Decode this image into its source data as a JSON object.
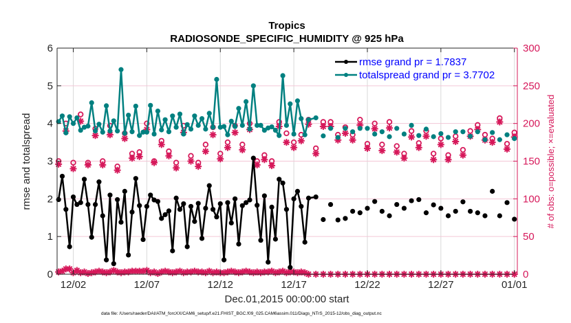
{
  "chart_data": {
    "type": "line",
    "title": "Tropics",
    "subtitle": "RADIOSONDE_SPECIFIC_HUMIDITY @ 925 hPa",
    "xlabel": "Dec.01,2015 00:00:00 start",
    "ylabel": "rmse and totalspread",
    "ylabel_right": "# of obs: o=possible; ×=evaluated",
    "footnote": "data file: /Users/raeder/DAI/ATM_forcXX/CAM6_setup/f.e21.FHIST_BGC.f09_025.CAM6assim.011/Diags_NTrS_2015-12/obs_diag_output.nc",
    "x_unit": "days since 2015-12-01 00:00",
    "xlim": [
      -0.1,
      31.2
    ],
    "ylim": [
      0,
      6
    ],
    "ylim_right": [
      0,
      300
    ],
    "x_ticks": [
      {
        "value": 1,
        "label": "12/02"
      },
      {
        "value": 6,
        "label": "12/07"
      },
      {
        "value": 11,
        "label": "12/12"
      },
      {
        "value": 16,
        "label": "12/17"
      },
      {
        "value": 21,
        "label": "12/22"
      },
      {
        "value": 26,
        "label": "12/27"
      },
      {
        "value": 31,
        "label": "01/01"
      }
    ],
    "y_ticks": [
      "0",
      "1",
      "2",
      "3",
      "4",
      "5",
      "6"
    ],
    "y_ticks_right": [
      "0",
      "50",
      "100",
      "150",
      "200",
      "250",
      "300"
    ],
    "grid": true,
    "legend_position": "top-right",
    "legend": [
      {
        "label": "rmse grand pr = 1.7837",
        "series": "rmse"
      },
      {
        "label": "totalspread grand pr = 3.7702",
        "series": "totalspread"
      }
    ],
    "colors": {
      "rmse": "#000000",
      "totalspread": "#008080",
      "obs": "#d6185a",
      "legend_text": "#0000ff",
      "grid_x": "#d9d9d9",
      "grid_y": "#f3c6d6"
    },
    "series_dense": {
      "note": "6-hourly, connected lines, 12/01 00Z to 12/18 06Z",
      "x_start": 0,
      "x_step": 0.25,
      "rmse": [
        1.98,
        2.6,
        1.72,
        0.73,
        2.05,
        1.85,
        1.9,
        2.52,
        1.85,
        0.98,
        1.85,
        2.45,
        1.55,
        0.38,
        2.1,
        0.28,
        1.98,
        1.38,
        2.2,
        0.51,
        1.65,
        2.54,
        1.82,
        0.92,
        1.8,
        2.1,
        1.97,
        1.93,
        1.48,
        1.58,
        1.68,
        0.62,
        2.02,
        1.72,
        1.87,
        0.73,
        1.8,
        1.4,
        1.88,
        0.95,
        1.75,
        2.35,
        1.72,
        1.52,
        1.87,
        0.38,
        1.9,
        1.36,
        2.0,
        0.8,
        1.82,
        1.9,
        1.97,
        3.08,
        1.83,
        0.9,
        2.08,
        0.32,
        1.78,
        0.93,
        2.52,
        2.42,
        1.72,
        0.18,
        2.0,
        2.2,
        1.8,
        0.85,
        2.02
      ],
      "totalspread": [
        4.05,
        4.2,
        3.75,
        4.18,
        4.0,
        4.15,
        3.82,
        3.9,
        3.93,
        4.55,
        3.8,
        3.98,
        3.77,
        4.47,
        3.8,
        4.07,
        3.8,
        5.43,
        3.74,
        4.22,
        3.78,
        4.46,
        3.68,
        3.77,
        3.77,
        4.48,
        3.72,
        4.33,
        3.83,
        4.1,
        3.78,
        4.2,
        3.9,
        4.25,
        3.72,
        3.97,
        3.85,
        4.2,
        3.95,
        4.13,
        3.85,
        4.27,
        3.9,
        5.17,
        3.9,
        3.92,
        3.7,
        4.06,
        3.92,
        4.4,
        3.95,
        4.58,
        3.85,
        5.0,
        3.95,
        3.95,
        3.82,
        3.88,
        3.91,
        3.82,
        3.68,
        5.27,
        3.95,
        4.52,
        3.72,
        4.6,
        4.13,
        3.7,
        4.1
      ]
    },
    "series_sparse": {
      "note": "12-hourly markers only (no connecting line), from 12/18 12Z",
      "x_start": 17.5,
      "x_step": 0.5,
      "rmse": [
        2.05,
        1.45,
        1.85,
        1.44,
        1.48,
        1.67,
        1.63,
        1.75,
        1.93,
        1.67,
        1.55,
        1.85,
        1.75,
        1.95,
        1.98,
        1.63,
        1.84,
        1.75,
        1.55,
        1.67,
        1.92,
        1.67,
        1.63,
        1.55,
        2.2,
        1.55,
        1.9,
        1.46
      ],
      "totalspread": [
        4.15,
        3.67,
        3.87,
        3.63,
        3.87,
        3.78,
        3.87,
        3.87,
        3.72,
        3.78,
        3.65,
        3.87,
        3.72,
        3.95,
        3.68,
        3.85,
        3.65,
        3.73,
        3.63,
        3.78,
        3.78,
        3.66,
        3.78,
        3.57,
        3.76,
        3.57,
        3.7,
        3.6
      ]
    },
    "obs_counts": {
      "note": "right axis; possible (o) and evaluated (*) counts, 12-hourly for the upper clusters",
      "x_start": 0,
      "x_step": 0.5,
      "possible": [
        150,
        200,
        148,
        212,
        148,
        193,
        150,
        197,
        143,
        187,
        160,
        162,
        200,
        150,
        177,
        163,
        148,
        197,
        157,
        148,
        172,
        195,
        160,
        175,
        197,
        172,
        200,
        150,
        158,
        150,
        202,
        187,
        175,
        185,
        205,
        167,
        202,
        202,
        185,
        195,
        185,
        205,
        173,
        200,
        172,
        202,
        170,
        160,
        190,
        174,
        190,
        160,
        180,
        158,
        183,
        165,
        190,
        198,
        185,
        180,
        207,
        173,
        188
      ],
      "evaluated": [
        146,
        190,
        140,
        203,
        145,
        184,
        145,
        185,
        138,
        180,
        154,
        156,
        192,
        148,
        172,
        157,
        141,
        188,
        150,
        143,
        163,
        185,
        153,
        168,
        188,
        165,
        192,
        145,
        152,
        144,
        196,
        175,
        168,
        177,
        199,
        160,
        196,
        196,
        178,
        187,
        178,
        198,
        167,
        193,
        164,
        194,
        162,
        154,
        182,
        168,
        183,
        152,
        172,
        152,
        176,
        158,
        183,
        192,
        178,
        175,
        202,
        166,
        182
      ],
      "low_counts_6hourly": [
        3,
        4,
        7,
        7,
        2,
        5,
        2,
        3,
        1,
        2,
        3,
        4,
        3,
        2,
        3,
        5,
        3,
        2,
        3,
        3,
        4,
        4,
        4,
        4,
        5,
        2,
        3,
        1,
        3,
        4,
        3,
        2,
        3,
        4,
        2,
        3,
        3,
        4,
        3,
        3,
        2,
        4,
        2,
        3,
        2,
        2,
        3,
        4,
        3,
        2,
        3,
        4,
        3,
        2,
        3,
        2,
        3,
        3,
        4,
        2,
        3,
        4,
        2,
        3,
        3,
        2,
        3,
        2,
        0
      ],
      "low_counts_rest": 0
    }
  }
}
